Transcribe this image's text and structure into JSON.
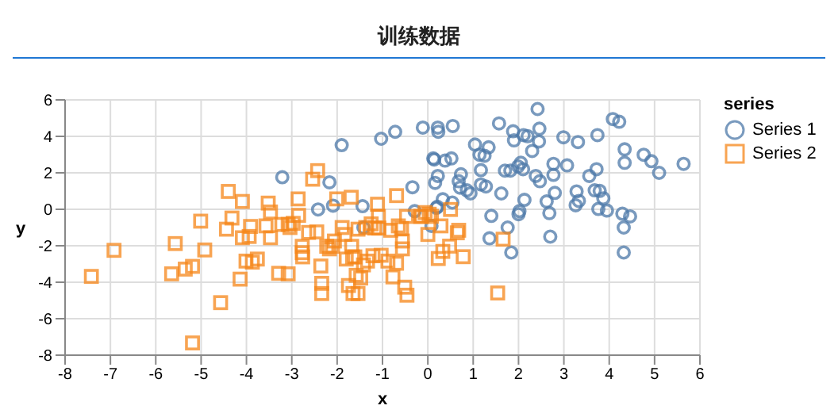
{
  "chart_data": {
    "type": "scatter",
    "title": "训练数据",
    "xlabel": "x",
    "ylabel": "y",
    "legend_title": "series",
    "legend": "right",
    "grid": true,
    "xlim": [
      -8,
      6
    ],
    "xticks": [
      -8,
      -7,
      -6,
      -5,
      -4,
      -3,
      -2,
      -1,
      0,
      1,
      2,
      3,
      4,
      5,
      6
    ],
    "ylim": [
      -8,
      6
    ],
    "yticks": [
      -8,
      -6,
      -4,
      -2,
      0,
      2,
      4,
      6
    ],
    "series": [
      {
        "name": "Series 1",
        "color": "#4c78a8",
        "marker": "circle",
        "x": [
          -3.21,
          -2.42,
          -2.17,
          -2.09,
          -1.9,
          -1.44,
          -1.42,
          -1.03,
          -0.72,
          -0.34,
          -0.29,
          -0.11,
          0.08,
          0.14,
          0.21,
          0.22,
          0.22,
          0.23,
          0.55,
          0.12,
          0.38,
          0.52,
          0.16,
          0.33,
          0.54,
          0.19,
          0.73,
          0.68,
          0.71,
          0.86,
          0.94,
          1.04,
          1.14,
          1.25,
          1.34,
          1.17,
          1.17,
          1.28,
          1.4,
          1.36,
          1.57,
          1.62,
          1.7,
          1.82,
          1.76,
          1.84,
          1.88,
          1.9,
          1.99,
          2.0,
          2.02,
          2.05,
          2.1,
          2.11,
          2.13,
          2.2,
          2.3,
          2.38,
          2.47,
          2.45,
          2.46,
          2.42,
          2.62,
          2.68,
          2.7,
          2.77,
          2.77,
          2.8,
          2.99,
          3.07,
          3.26,
          3.28,
          3.33,
          3.31,
          3.56,
          3.68,
          3.72,
          3.74,
          3.76,
          3.79,
          3.87,
          3.95,
          4.08,
          4.22,
          4.29,
          4.32,
          4.32,
          4.34,
          4.34,
          4.46,
          4.76,
          4.93,
          5.1,
          5.64
        ],
        "values": [
          1.76,
          -0.01,
          1.48,
          0.2,
          3.52,
          0.17,
          -1.0,
          3.87,
          4.25,
          1.21,
          -0.1,
          4.48,
          -0.91,
          2.73,
          0.14,
          1.83,
          4.48,
          4.25,
          4.57,
          2.79,
          2.67,
          2.79,
          1.45,
          0.55,
          0.37,
          0.08,
          1.92,
          1.54,
          1.19,
          1.04,
          0.87,
          3.55,
          2.99,
          2.94,
          3.4,
          2.15,
          1.36,
          1.25,
          -0.36,
          -1.59,
          4.71,
          0.87,
          2.12,
          2.12,
          -1.0,
          -2.37,
          4.28,
          3.78,
          2.35,
          -0.27,
          -0.1,
          2.55,
          2.2,
          4.07,
          0.52,
          4.01,
          3.2,
          1.83,
          1.54,
          3.72,
          4.42,
          5.5,
          0.43,
          -0.21,
          -1.5,
          2.49,
          1.89,
          0.9,
          3.95,
          2.41,
          0.22,
          0.98,
          0.46,
          3.69,
          1.83,
          1.04,
          2.2,
          4.07,
          0.02,
          1.01,
          0.6,
          -0.07,
          4.95,
          4.8,
          -0.24,
          -1.0,
          -2.37,
          3.29,
          2.55,
          -0.39,
          2.99,
          2.64,
          2.0,
          2.49
        ]
      },
      {
        "name": "Series 2",
        "color": "#f58518",
        "marker": "square",
        "x": [
          -7.42,
          -6.92,
          -5.65,
          -5.57,
          -5.35,
          -5.19,
          -5.01,
          -4.92,
          -5.19,
          -4.57,
          -4.44,
          -4.4,
          -4.32,
          -4.14,
          -4.09,
          -4.09,
          -4.01,
          -3.94,
          -3.91,
          -3.87,
          -3.76,
          -3.57,
          -3.52,
          -3.47,
          -3.47,
          -3.29,
          -3.22,
          -3.08,
          -3.08,
          -3.04,
          -2.97,
          -2.86,
          -2.85,
          -2.77,
          -2.77,
          -2.76,
          -2.63,
          -2.54,
          -2.45,
          -2.43,
          -2.36,
          -2.34,
          -2.34,
          -2.23,
          -2.17,
          -2.1,
          -2.06,
          -2.01,
          -1.89,
          -1.83,
          -1.8,
          -1.75,
          -1.69,
          -1.68,
          -1.66,
          -1.65,
          -1.61,
          -1.58,
          -1.54,
          -1.54,
          -1.48,
          -1.42,
          -1.37,
          -1.33,
          -1.25,
          -1.21,
          -1.17,
          -1.11,
          -1.09,
          -1.08,
          -1.03,
          -0.88,
          -0.82,
          -0.77,
          -0.69,
          -0.69,
          -0.65,
          -0.58,
          -0.56,
          -0.56,
          -0.51,
          -0.46,
          -0.47,
          -0.16,
          -0.06,
          0.0,
          0.23,
          0.29,
          -0.14,
          0.03,
          0.08,
          0.5,
          0.33,
          0.48,
          0.68,
          0.65,
          0.78,
          1.66,
          1.54
        ],
        "values": [
          -3.68,
          -2.25,
          -3.54,
          -1.88,
          -3.28,
          -3.13,
          -0.65,
          -2.23,
          -7.33,
          -5.12,
          -1.09,
          0.98,
          -0.48,
          -3.83,
          0.43,
          -1.56,
          -2.84,
          -1.49,
          -0.94,
          -2.9,
          -2.73,
          -0.91,
          0.34,
          -0.15,
          -1.56,
          -3.51,
          -0.83,
          -0.83,
          -3.54,
          -1.0,
          -0.77,
          0.57,
          -0.33,
          -2.03,
          -2.38,
          -2.61,
          -1.27,
          1.65,
          -1.24,
          2.12,
          -3.11,
          -4.06,
          -4.62,
          -2.03,
          -2.17,
          -2.03,
          -1.74,
          0.57,
          -1.0,
          -1.38,
          -2.73,
          -4.18,
          0.66,
          -2.03,
          -2.61,
          -4.62,
          -2.61,
          -3.62,
          -1.09,
          -4.62,
          -3.77,
          -3.05,
          -1.0,
          -2.84,
          -0.8,
          -2.55,
          -1.03,
          0.28,
          -0.39,
          -1.03,
          -2.52,
          -2.84,
          -1.15,
          -3.71,
          0.75,
          -2.96,
          -0.91,
          -1.06,
          -1.74,
          -2.17,
          -4.27,
          -4.71,
          -0.39,
          -0.39,
          -0.18,
          -1.38,
          -2.7,
          -0.91,
          -0.39,
          -0.27,
          -0.39,
          -0.01,
          -2.31,
          -2.02,
          -1.15,
          -1.29,
          -2.6,
          -1.64,
          -4.59
        ]
      }
    ]
  }
}
